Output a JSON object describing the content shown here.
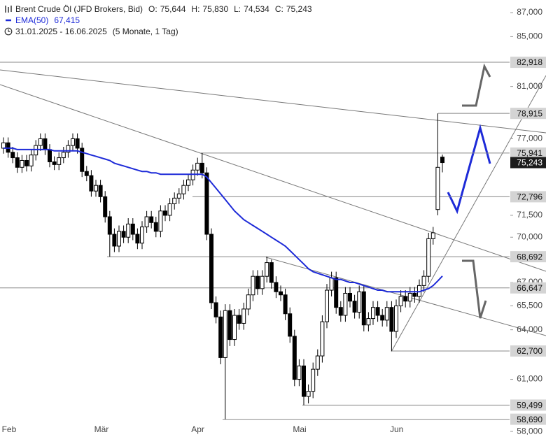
{
  "chart_data": {
    "type": "candlestick",
    "title": "Brent Crude Öl (JFD Brokers, Bid)",
    "ohlc_legend": [
      {
        "label": "O:",
        "value_label": "75,644"
      },
      {
        "label": "H:",
        "value_label": "75,830"
      },
      {
        "label": "L:",
        "value_label": "74,534"
      },
      {
        "label": "C:",
        "value_label": "75,243"
      }
    ],
    "date_range": "31.01.2025 - 16.06.2025",
    "period": "(5 Monate, 1 Tag)",
    "categories": [
      null,
      "Feb",
      null,
      null,
      null,
      null,
      null,
      null,
      null,
      null,
      null,
      null,
      null,
      null,
      null,
      null,
      null,
      null,
      null,
      null,
      null,
      "Mär",
      null,
      null,
      null,
      null,
      null,
      null,
      null,
      null,
      null,
      null,
      null,
      null,
      null,
      null,
      null,
      null,
      null,
      null,
      null,
      null,
      "Apr",
      null,
      null,
      null,
      null,
      null,
      null,
      null,
      null,
      null,
      null,
      null,
      null,
      null,
      null,
      null,
      null,
      null,
      null,
      null,
      null,
      null,
      "Mai",
      null,
      null,
      null,
      null,
      null,
      null,
      null,
      null,
      null,
      null,
      null,
      null,
      null,
      null,
      null,
      null,
      null,
      null,
      null,
      null,
      "Jun",
      null,
      null,
      null,
      null,
      null,
      null,
      null,
      null,
      null,
      null
    ],
    "open": [
      76.3,
      76.7,
      76.0,
      75.6,
      74.9,
      75.4,
      75.0,
      75.8,
      76.5,
      77.0,
      76.2,
      75.3,
      75.1,
      75.6,
      76.0,
      76.5,
      77.0,
      76.3,
      74.6,
      74.3,
      73.2,
      73.6,
      72.8,
      71.4,
      70.2,
      69.4,
      70.4,
      70.0,
      70.9,
      70.2,
      69.6,
      70.7,
      71.4,
      71.0,
      70.4,
      71.8,
      71.5,
      72.3,
      72.7,
      73.0,
      73.6,
      74.0,
      74.7,
      75.2,
      74.5,
      70.2,
      65.7,
      64.8,
      62.3,
      65.2,
      63.4,
      64.9,
      64.4,
      65.3,
      66.2,
      67.4,
      66.6,
      67.4,
      68.3,
      67.0,
      66.4,
      66.2,
      65.0,
      63.6,
      61.0,
      61.8,
      60.0,
      60.3,
      61.6,
      62.4,
      64.5,
      66.5,
      67.3,
      65.4,
      64.9,
      66.3,
      65.8,
      65.1,
      66.4,
      64.3,
      64.7,
      65.4,
      64.9,
      64.6,
      65.4,
      63.9,
      65.5,
      66.1,
      65.8,
      66.3,
      66.1,
      66.8,
      67.4,
      69.9,
      71.9,
      75.644
    ],
    "high": [
      77.1,
      77.1,
      76.4,
      76.0,
      75.8,
      75.8,
      76.2,
      76.9,
      77.4,
      77.4,
      76.6,
      75.7,
      76.0,
      76.4,
      76.9,
      77.4,
      77.4,
      76.7,
      75.0,
      74.7,
      74.0,
      74.0,
      73.2,
      71.8,
      70.6,
      70.8,
      70.8,
      71.3,
      71.3,
      70.6,
      71.1,
      71.8,
      71.8,
      71.4,
      72.2,
      72.2,
      72.7,
      73.1,
      73.4,
      74.0,
      74.4,
      75.1,
      75.6,
      75.941,
      74.9,
      70.6,
      66.1,
      65.2,
      65.6,
      65.6,
      65.3,
      65.3,
      65.7,
      66.6,
      67.8,
      67.8,
      67.8,
      68.692,
      68.5,
      67.4,
      66.8,
      66.6,
      65.4,
      64.0,
      62.2,
      62.2,
      60.7,
      62.0,
      62.8,
      64.9,
      66.9,
      67.7,
      67.7,
      65.8,
      66.7,
      66.7,
      66.2,
      66.8,
      66.8,
      65.1,
      65.8,
      65.8,
      65.3,
      65.8,
      65.8,
      65.9,
      66.5,
      66.5,
      66.7,
      66.7,
      67.2,
      67.8,
      70.3,
      70.7,
      78.915,
      75.83
    ],
    "low": [
      75.9,
      75.6,
      75.2,
      74.5,
      74.5,
      74.6,
      74.6,
      75.4,
      76.1,
      75.8,
      74.9,
      74.7,
      74.7,
      75.2,
      75.6,
      76.1,
      75.9,
      74.2,
      73.9,
      72.8,
      72.8,
      72.4,
      71.0,
      68.692,
      69.0,
      69.0,
      69.6,
      69.6,
      69.8,
      69.2,
      69.2,
      70.3,
      70.6,
      70.0,
      70.0,
      71.1,
      71.1,
      71.9,
      72.3,
      72.6,
      73.2,
      73.6,
      74.3,
      74.1,
      69.8,
      65.3,
      64.4,
      61.9,
      58.69,
      63.0,
      63.0,
      64.0,
      64.0,
      64.9,
      65.8,
      66.2,
      66.2,
      67.0,
      66.6,
      66.0,
      65.8,
      64.6,
      63.2,
      60.6,
      60.6,
      59.499,
      59.6,
      59.9,
      61.2,
      62.0,
      64.1,
      66.1,
      65.0,
      64.5,
      64.5,
      65.4,
      64.7,
      64.7,
      63.9,
      63.9,
      64.3,
      64.5,
      64.2,
      64.2,
      62.7,
      63.5,
      65.1,
      65.4,
      65.4,
      65.7,
      65.7,
      66.4,
      67.0,
      69.5,
      71.5,
      74.534
    ],
    "close": [
      76.7,
      76.0,
      75.6,
      74.9,
      75.4,
      75.0,
      75.8,
      76.5,
      77.0,
      76.2,
      75.3,
      75.1,
      75.6,
      76.0,
      76.5,
      77.0,
      76.3,
      74.6,
      74.3,
      73.2,
      73.6,
      72.8,
      71.4,
      70.2,
      69.4,
      70.4,
      70.0,
      70.9,
      70.2,
      69.6,
      70.7,
      71.4,
      71.0,
      70.4,
      71.8,
      71.5,
      72.3,
      72.7,
      73.0,
      73.6,
      74.0,
      74.7,
      75.2,
      74.5,
      70.2,
      65.7,
      64.8,
      62.3,
      65.2,
      63.4,
      64.9,
      64.4,
      65.3,
      66.2,
      67.4,
      66.6,
      67.4,
      68.3,
      67.0,
      66.4,
      66.2,
      65.0,
      63.6,
      61.0,
      61.8,
      60.0,
      60.3,
      61.6,
      62.4,
      64.5,
      66.5,
      67.3,
      65.4,
      64.9,
      66.3,
      65.8,
      65.1,
      66.4,
      64.3,
      64.7,
      65.4,
      64.9,
      64.6,
      65.4,
      63.9,
      65.5,
      66.1,
      65.8,
      66.3,
      66.1,
      66.8,
      67.4,
      69.9,
      70.3,
      74.9,
      75.243
    ],
    "up_color": "#ffffff",
    "down_color": "#000000",
    "overlay": {
      "name": "EMA(50)",
      "color": "#1d2ad8",
      "value_label": "67,415",
      "values": [
        76.3,
        76.3,
        76.3,
        76.2,
        76.2,
        76.2,
        76.2,
        76.2,
        76.2,
        76.2,
        76.2,
        76.1,
        76.1,
        76.1,
        76.1,
        76.1,
        76.1,
        76.0,
        75.9,
        75.8,
        75.7,
        75.6,
        75.5,
        75.4,
        75.2,
        75.1,
        75.0,
        74.9,
        74.8,
        74.7,
        74.6,
        74.6,
        74.5,
        74.5,
        74.4,
        74.4,
        74.4,
        74.4,
        74.4,
        74.4,
        74.4,
        74.4,
        74.4,
        74.4,
        74.2,
        73.8,
        73.4,
        73.0,
        72.6,
        72.2,
        71.8,
        71.5,
        71.2,
        71.0,
        70.8,
        70.6,
        70.4,
        70.2,
        70.0,
        69.8,
        69.6,
        69.4,
        69.1,
        68.8,
        68.5,
        68.2,
        67.9,
        67.7,
        67.6,
        67.5,
        67.4,
        67.3,
        67.2,
        67.2,
        67.1,
        67.0,
        67.0,
        66.9,
        66.8,
        66.7,
        66.6,
        66.5,
        66.5,
        66.4,
        66.4,
        66.4,
        66.4,
        66.4,
        66.4,
        66.4,
        66.4,
        66.5,
        66.6,
        66.8,
        67.1,
        67.415
      ]
    },
    "last_price_label": "75,243",
    "levels": [
      {
        "value": 82.918,
        "label": "82,918"
      },
      {
        "value": 78.915,
        "label": "78,915"
      },
      {
        "value": 75.941,
        "label": "75,941"
      },
      {
        "value": 72.796,
        "label": "72,796"
      },
      {
        "value": 68.692,
        "label": "68,692"
      },
      {
        "value": 66.647,
        "label": "66,647"
      },
      {
        "value": 62.7,
        "label": "62,700"
      },
      {
        "value": 59.499,
        "label": "59,499"
      },
      {
        "value": 58.69,
        "label": "58,690"
      }
    ],
    "ylim": [
      57.69,
      88.07
    ],
    "log_scale": true,
    "yticks": [
      {
        "value": 87,
        "label": "87,000"
      },
      {
        "value": 85,
        "label": "85,000"
      },
      {
        "value": 81,
        "label": "81,000"
      },
      {
        "value": 77,
        "label": "77,000"
      },
      {
        "value": 71.5,
        "label": "71,500"
      },
      {
        "value": 70,
        "label": "70,000"
      },
      {
        "value": 67,
        "label": "67,000"
      },
      {
        "value": 65.5,
        "label": "65,500"
      },
      {
        "value": 64,
        "label": "64,000"
      },
      {
        "value": 61,
        "label": "61,000"
      },
      {
        "value": 58,
        "label": "58,000"
      }
    ]
  }
}
